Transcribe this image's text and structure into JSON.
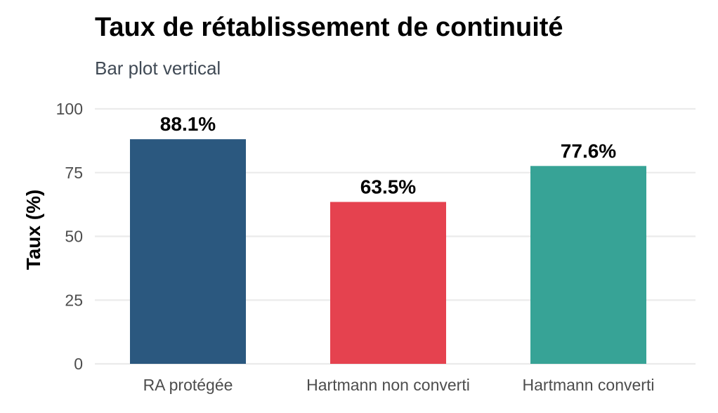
{
  "chart_data": {
    "type": "bar",
    "title": "Taux de rétablissement de continuité",
    "subtitle": "Bar plot vertical",
    "xlabel": "",
    "ylabel": "Taux (%)",
    "ylim": [
      0,
      100
    ],
    "yticks": [
      0,
      25,
      50,
      75,
      100
    ],
    "ytick_labels": [
      "0",
      "25",
      "50",
      "75",
      "100"
    ],
    "categories": [
      "RA protégée",
      "Hartmann non converti",
      "Hartmann converti"
    ],
    "values": [
      88.1,
      63.5,
      77.6
    ],
    "data_labels": [
      "88.1%",
      "63.5%",
      "77.6%"
    ],
    "colors": [
      "#2b587f",
      "#e5424f",
      "#37a396"
    ],
    "grid": true,
    "legend": "none"
  },
  "style": {
    "grid_color": "#ebebeb",
    "tick_color": "#4d4d4d"
  }
}
